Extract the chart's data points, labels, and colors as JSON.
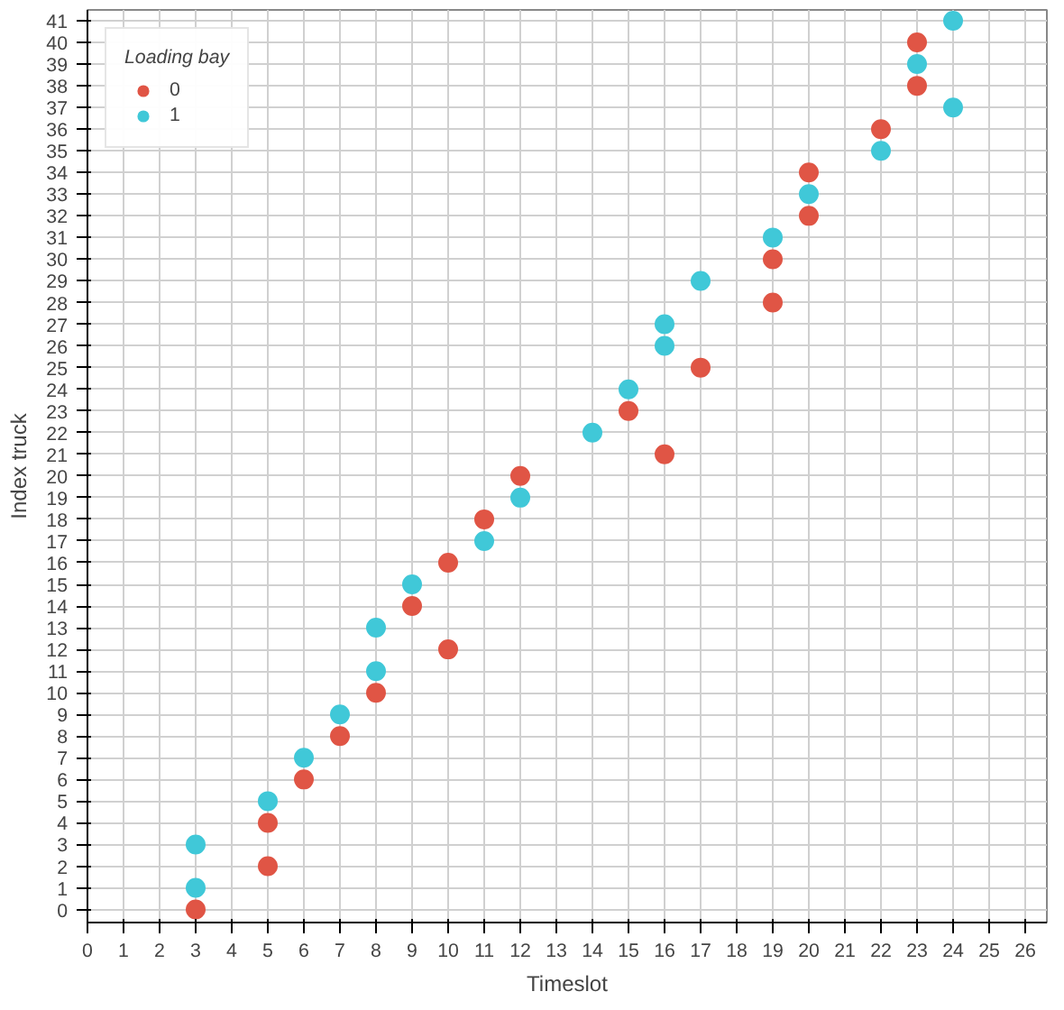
{
  "chart_data": {
    "type": "scatter",
    "xlabel": "Timeslot",
    "ylabel": "Index truck",
    "legend_title": "Loading bay",
    "legend": "top left",
    "grid": true,
    "marker": "circle",
    "xlim": [
      0,
      26.6
    ],
    "ylim": [
      -0.6,
      41.5
    ],
    "xticks": [
      0,
      1,
      2,
      3,
      4,
      5,
      6,
      7,
      8,
      9,
      10,
      11,
      12,
      13,
      14,
      15,
      16,
      17,
      18,
      19,
      20,
      21,
      22,
      23,
      24,
      25,
      26
    ],
    "yticks": [
      0,
      1,
      2,
      3,
      4,
      5,
      6,
      7,
      8,
      9,
      10,
      11,
      12,
      13,
      14,
      15,
      16,
      17,
      18,
      19,
      20,
      21,
      22,
      23,
      24,
      25,
      26,
      27,
      28,
      29,
      30,
      31,
      32,
      33,
      34,
      35,
      36,
      37,
      38,
      39,
      40,
      41
    ],
    "series": [
      {
        "name": "0",
        "color": "#e05545",
        "x": [
          3,
          5,
          5,
          6,
          7,
          8,
          9,
          10,
          10,
          11,
          12,
          15,
          16,
          17,
          19,
          19,
          20,
          20,
          22,
          23,
          23
        ],
        "values": [
          0,
          2,
          4,
          6,
          8,
          10,
          14,
          12,
          16,
          18,
          20,
          23,
          21,
          25,
          28,
          30,
          32,
          34,
          36,
          38,
          40
        ]
      },
      {
        "name": "1",
        "color": "#40c8d8",
        "x": [
          3,
          3,
          5,
          6,
          7,
          8,
          8,
          9,
          11,
          12,
          14,
          15,
          16,
          16,
          17,
          19,
          20,
          22,
          23,
          24,
          24
        ],
        "values": [
          1,
          3,
          5,
          7,
          9,
          11,
          13,
          15,
          17,
          19,
          22,
          24,
          26,
          27,
          29,
          31,
          33,
          35,
          39,
          37,
          41
        ]
      }
    ]
  }
}
